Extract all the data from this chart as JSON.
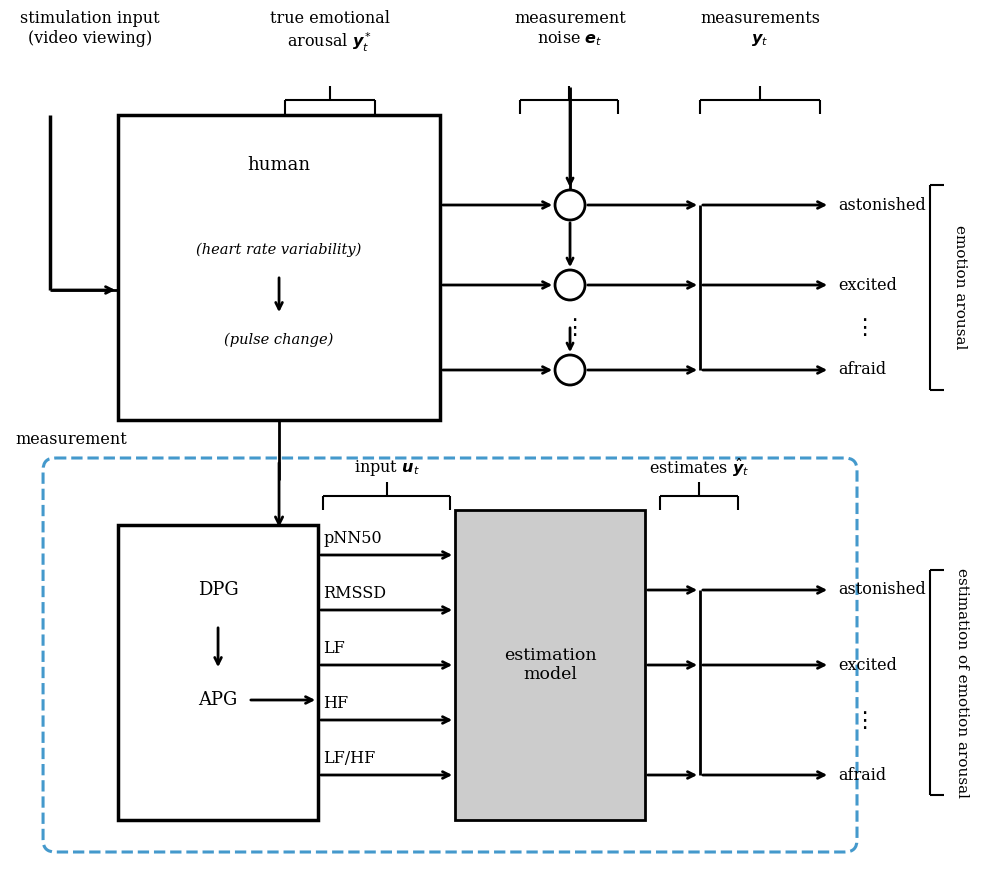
{
  "bg_color": "#ffffff",
  "top_labels": {
    "stim": "stimulation input\n(video viewing)",
    "arousal": "true emotional\narousal $\\boldsymbol{y}_t^*$",
    "noise": "measurement\nnoise $\\boldsymbol{e}_t$",
    "measurements": "measurements\n$\\boldsymbol{y}_t$"
  },
  "emotion_labels_top": [
    "astonished",
    "excited",
    "afraid"
  ],
  "emotion_labels_bottom": [
    "astonished",
    "excited",
    "afraid"
  ],
  "hrv_label": "(heart rate variability)",
  "pulse_label": "(pulse change)",
  "dpg_label": "DPG",
  "apg_label": "APG",
  "feature_labels": [
    "pNN50",
    "RMSSD",
    "LF",
    "HF",
    "LF/HF"
  ],
  "side_label_top": "emotion arousal",
  "side_label_bottom": "estimation of emotion arousal",
  "measurement_label": "measurement",
  "model_label": "estimation\nmodel",
  "human_label": "human",
  "input_label": "input $\\boldsymbol{u}_t$",
  "estimates_label": "estimates $\\hat{\\boldsymbol{y}}_t$",
  "dashed_color": "#4499cc",
  "model_facecolor": "#cccccc"
}
